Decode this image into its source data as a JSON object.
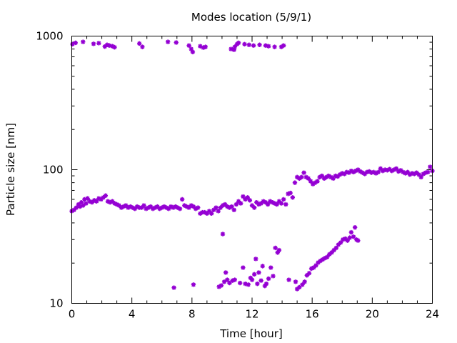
{
  "chart_data": {
    "type": "scatter",
    "title": "Modes location (5/9/1)",
    "xlabel": "Time [hour]",
    "ylabel": "Particle size [nm]",
    "xlim": [
      0,
      24
    ],
    "ylim": [
      10,
      1000
    ],
    "yscale": "log",
    "xticks": [
      "0",
      "4",
      "8",
      "12",
      "16",
      "20",
      "24"
    ],
    "yticks": [
      "10",
      "100",
      "1000"
    ],
    "grid": false,
    "legend": "none",
    "marker_color": "#9400d3",
    "series": [
      {
        "values": [
          [
            0.05,
            870
          ],
          [
            0.25,
            890
          ],
          [
            0.75,
            905
          ],
          [
            1.45,
            875
          ],
          [
            1.8,
            885
          ],
          [
            2.2,
            835
          ],
          [
            2.35,
            860
          ],
          [
            2.5,
            850
          ],
          [
            2.7,
            840
          ],
          [
            2.85,
            825
          ],
          [
            4.5,
            880
          ],
          [
            4.7,
            830
          ],
          [
            6.4,
            905
          ],
          [
            6.95,
            895
          ],
          [
            7.8,
            850
          ],
          [
            7.95,
            800
          ],
          [
            8.05,
            760
          ],
          [
            8.55,
            840
          ],
          [
            8.75,
            820
          ],
          [
            8.9,
            830
          ],
          [
            10.6,
            800
          ],
          [
            10.8,
            790
          ],
          [
            10.85,
            830
          ],
          [
            11.0,
            870
          ],
          [
            11.1,
            890
          ],
          [
            11.5,
            870
          ],
          [
            11.8,
            860
          ],
          [
            12.1,
            850
          ],
          [
            12.5,
            860
          ],
          [
            12.9,
            850
          ],
          [
            13.1,
            840
          ],
          [
            13.5,
            830
          ],
          [
            13.95,
            830
          ],
          [
            14.1,
            850
          ],
          [
            0.0,
            49
          ],
          [
            0.15,
            50
          ],
          [
            0.3,
            52
          ],
          [
            0.45,
            55
          ],
          [
            0.55,
            53
          ],
          [
            0.65,
            57
          ],
          [
            0.75,
            54
          ],
          [
            0.85,
            60
          ],
          [
            0.95,
            56
          ],
          [
            1.05,
            61
          ],
          [
            1.2,
            58
          ],
          [
            1.35,
            57
          ],
          [
            1.5,
            59
          ],
          [
            1.65,
            58
          ],
          [
            1.8,
            61
          ],
          [
            1.95,
            60
          ],
          [
            2.1,
            62
          ],
          [
            2.25,
            64
          ],
          [
            2.4,
            58
          ],
          [
            2.55,
            57
          ],
          [
            2.7,
            58
          ],
          [
            2.85,
            56
          ],
          [
            3.0,
            55
          ],
          [
            3.15,
            54
          ],
          [
            3.3,
            52
          ],
          [
            3.45,
            53
          ],
          [
            3.6,
            54
          ],
          [
            3.75,
            52
          ],
          [
            3.9,
            53
          ],
          [
            4.05,
            52
          ],
          [
            4.2,
            51
          ],
          [
            4.35,
            53
          ],
          [
            4.5,
            52
          ],
          [
            4.65,
            52
          ],
          [
            4.8,
            54
          ],
          [
            4.95,
            51
          ],
          [
            5.1,
            52
          ],
          [
            5.25,
            53
          ],
          [
            5.4,
            51
          ],
          [
            5.55,
            52
          ],
          [
            5.7,
            53
          ],
          [
            5.85,
            51
          ],
          [
            6.0,
            52
          ],
          [
            6.15,
            53
          ],
          [
            6.3,
            52
          ],
          [
            6.45,
            51
          ],
          [
            6.6,
            53
          ],
          [
            6.75,
            52
          ],
          [
            6.9,
            53
          ],
          [
            7.05,
            52
          ],
          [
            7.2,
            51
          ],
          [
            7.35,
            60
          ],
          [
            7.5,
            54
          ],
          [
            7.65,
            53
          ],
          [
            7.8,
            52
          ],
          [
            7.95,
            54
          ],
          [
            8.1,
            53
          ],
          [
            8.25,
            51
          ],
          [
            8.4,
            52
          ],
          [
            8.55,
            47
          ],
          [
            8.7,
            48
          ],
          [
            8.85,
            48
          ],
          [
            9.0,
            47
          ],
          [
            9.15,
            49
          ],
          [
            9.3,
            47
          ],
          [
            9.45,
            50
          ],
          [
            9.6,
            52
          ],
          [
            9.75,
            49
          ],
          [
            9.9,
            52
          ],
          [
            10.05,
            54
          ],
          [
            10.2,
            55
          ],
          [
            10.35,
            53
          ],
          [
            10.5,
            52
          ],
          [
            10.65,
            53
          ],
          [
            10.8,
            50
          ],
          [
            10.95,
            55
          ],
          [
            11.1,
            58
          ],
          [
            11.25,
            56
          ],
          [
            11.4,
            63
          ],
          [
            11.55,
            60
          ],
          [
            11.7,
            62
          ],
          [
            11.85,
            59
          ],
          [
            12.0,
            54
          ],
          [
            12.15,
            52
          ],
          [
            12.3,
            57
          ],
          [
            12.45,
            55
          ],
          [
            12.6,
            56
          ],
          [
            12.75,
            58
          ],
          [
            12.9,
            57
          ],
          [
            13.05,
            55
          ],
          [
            13.2,
            58
          ],
          [
            13.35,
            57
          ],
          [
            13.5,
            56
          ],
          [
            13.65,
            55
          ],
          [
            13.8,
            58
          ],
          [
            13.95,
            56
          ],
          [
            14.1,
            60
          ],
          [
            14.25,
            55
          ],
          [
            14.4,
            66
          ],
          [
            14.55,
            67
          ],
          [
            14.7,
            62
          ],
          [
            14.85,
            80
          ],
          [
            15.0,
            88
          ],
          [
            15.15,
            86
          ],
          [
            15.3,
            88
          ],
          [
            15.45,
            95
          ],
          [
            15.6,
            88
          ],
          [
            15.75,
            86
          ],
          [
            15.9,
            82
          ],
          [
            16.05,
            78
          ],
          [
            16.2,
            80
          ],
          [
            16.35,
            82
          ],
          [
            16.5,
            88
          ],
          [
            16.65,
            90
          ],
          [
            16.8,
            86
          ],
          [
            16.95,
            88
          ],
          [
            17.1,
            90
          ],
          [
            17.25,
            88
          ],
          [
            17.4,
            86
          ],
          [
            17.55,
            90
          ],
          [
            17.7,
            89
          ],
          [
            17.85,
            92
          ],
          [
            18.0,
            94
          ],
          [
            18.15,
            93
          ],
          [
            18.3,
            96
          ],
          [
            18.45,
            95
          ],
          [
            18.6,
            98
          ],
          [
            18.75,
            96
          ],
          [
            18.9,
            98
          ],
          [
            19.05,
            100
          ],
          [
            19.2,
            97
          ],
          [
            19.35,
            95
          ],
          [
            19.5,
            93
          ],
          [
            19.65,
            96
          ],
          [
            19.8,
            97
          ],
          [
            19.95,
            95
          ],
          [
            20.1,
            96
          ],
          [
            20.25,
            94
          ],
          [
            20.4,
            96
          ],
          [
            20.55,
            102
          ],
          [
            20.7,
            98
          ],
          [
            20.85,
            100
          ],
          [
            21.0,
            99
          ],
          [
            21.15,
            101
          ],
          [
            21.3,
            98
          ],
          [
            21.45,
            100
          ],
          [
            21.6,
            102
          ],
          [
            21.75,
            97
          ],
          [
            21.9,
            99
          ],
          [
            22.05,
            96
          ],
          [
            22.2,
            94
          ],
          [
            22.35,
            96
          ],
          [
            22.5,
            92
          ],
          [
            22.65,
            94
          ],
          [
            22.8,
            93
          ],
          [
            22.95,
            95
          ],
          [
            23.1,
            92
          ],
          [
            23.25,
            88
          ],
          [
            23.4,
            93
          ],
          [
            23.55,
            95
          ],
          [
            23.7,
            96
          ],
          [
            23.85,
            105
          ],
          [
            24.0,
            98
          ],
          [
            6.8,
            13.1
          ],
          [
            8.1,
            13.8
          ],
          [
            9.8,
            13.3
          ],
          [
            9.95,
            13.6
          ],
          [
            10.05,
            33
          ],
          [
            10.15,
            14.5
          ],
          [
            10.25,
            17
          ],
          [
            10.35,
            15
          ],
          [
            10.5,
            14.2
          ],
          [
            10.7,
            14.8
          ],
          [
            10.85,
            15
          ],
          [
            11.2,
            14.2
          ],
          [
            11.4,
            18.5
          ],
          [
            11.55,
            14
          ],
          [
            11.75,
            13.8
          ],
          [
            11.9,
            15.5
          ],
          [
            12.0,
            15
          ],
          [
            12.15,
            16.5
          ],
          [
            12.25,
            21.5
          ],
          [
            12.35,
            14
          ],
          [
            12.45,
            17
          ],
          [
            12.6,
            14.8
          ],
          [
            12.7,
            19
          ],
          [
            12.85,
            13.5
          ],
          [
            12.95,
            14
          ],
          [
            13.1,
            15.3
          ],
          [
            13.25,
            18.5
          ],
          [
            13.4,
            16
          ],
          [
            13.55,
            26
          ],
          [
            13.7,
            24
          ],
          [
            13.8,
            25
          ],
          [
            14.45,
            15
          ],
          [
            14.9,
            14.5
          ],
          [
            15.0,
            12.8
          ],
          [
            15.15,
            13.2
          ],
          [
            15.35,
            13.8
          ],
          [
            15.5,
            14.5
          ],
          [
            15.65,
            16.2
          ],
          [
            15.8,
            16.8
          ],
          [
            15.95,
            18.2
          ],
          [
            16.1,
            18.5
          ],
          [
            16.25,
            19.2
          ],
          [
            16.4,
            20.2
          ],
          [
            16.55,
            20.8
          ],
          [
            16.7,
            21.3
          ],
          [
            16.85,
            21.8
          ],
          [
            17.0,
            22.2
          ],
          [
            17.15,
            23.3
          ],
          [
            17.3,
            24
          ],
          [
            17.45,
            25
          ],
          [
            17.6,
            26
          ],
          [
            17.75,
            27.5
          ],
          [
            17.9,
            28.5
          ],
          [
            18.05,
            30
          ],
          [
            18.2,
            30.5
          ],
          [
            18.35,
            29.5
          ],
          [
            18.5,
            31
          ],
          [
            18.6,
            34
          ],
          [
            18.75,
            31.5
          ],
          [
            18.85,
            37
          ],
          [
            18.95,
            30
          ],
          [
            19.05,
            29.5
          ]
        ]
      }
    ]
  }
}
